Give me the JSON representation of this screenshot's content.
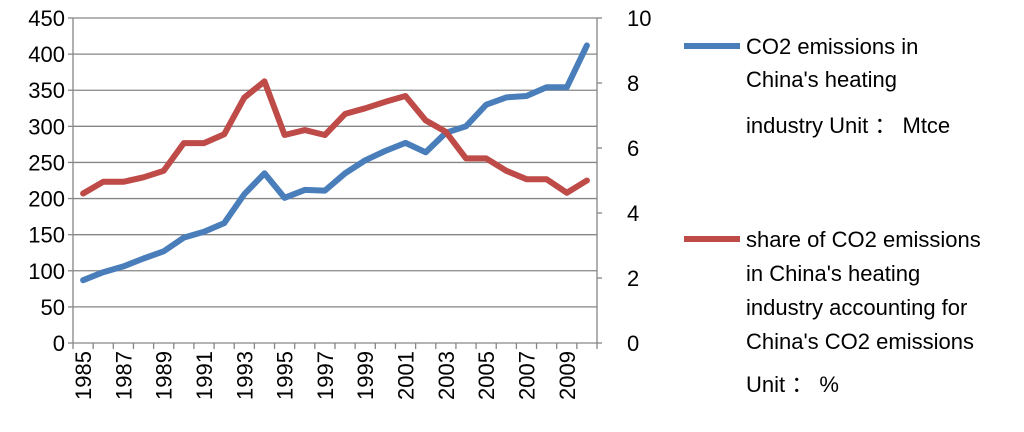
{
  "chart_data": {
    "type": "line",
    "title": "",
    "xlabel": "",
    "ylabel": "",
    "x": [
      1985,
      1986,
      1987,
      1988,
      1989,
      1990,
      1991,
      1992,
      1993,
      1994,
      1995,
      1996,
      1997,
      1998,
      1999,
      2000,
      2001,
      2002,
      2003,
      2004,
      2005,
      2006,
      2007,
      2008,
      2009,
      2010
    ],
    "x_tick_labels": [
      "1985",
      "1987",
      "1989",
      "1991",
      "1993",
      "1995",
      "1997",
      "1999",
      "2001",
      "2003",
      "2005",
      "2007",
      "2009"
    ],
    "y_left": {
      "min": 0,
      "max": 450,
      "step": 50,
      "tick_labels": [
        "0",
        "50",
        "100",
        "150",
        "200",
        "250",
        "300",
        "350",
        "400",
        "450"
      ]
    },
    "y_right": {
      "min": 0,
      "max": 10,
      "step": 2,
      "tick_labels": [
        "0",
        "2",
        "4",
        "6",
        "8",
        "10"
      ]
    },
    "grid": true,
    "legend_position": "right",
    "series": [
      {
        "name_lines": [
          "CO2 emissions in",
          "China's heating",
          "industry Unit ： Mtce"
        ],
        "axis": "left",
        "color": "#4a7ebb",
        "values": [
          87,
          98,
          106,
          117,
          127,
          146,
          154,
          166,
          206,
          235,
          201,
          212,
          211,
          235,
          253,
          266,
          277,
          264,
          291,
          300,
          330,
          340,
          342,
          354,
          354,
          412
        ]
      },
      {
        "name_lines": [
          "share of CO2 emissions",
          "in China's heating",
          "industry accounting for",
          "China's CO2 emissions",
          "Unit ： %"
        ],
        "axis": "right",
        "color": "#be4b48",
        "values": [
          4.6,
          4.96,
          4.96,
          5.1,
          5.3,
          6.15,
          6.15,
          6.42,
          7.55,
          8.05,
          6.4,
          6.55,
          6.4,
          7.05,
          7.22,
          7.42,
          7.6,
          6.85,
          6.5,
          5.68,
          5.68,
          5.3,
          5.04,
          5.04,
          4.62,
          5.0
        ]
      }
    ]
  }
}
